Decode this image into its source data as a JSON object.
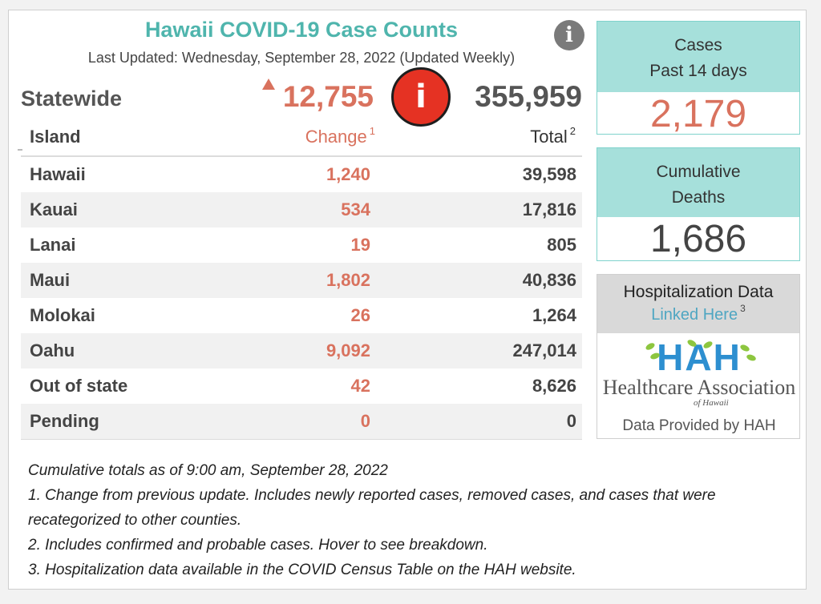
{
  "header": {
    "title": "Hawaii COVID-19 Case Counts",
    "subtitle": "Last Updated: Wednesday, September 28, 2022 (Updated Weekly)",
    "info_icon": "i"
  },
  "statewide": {
    "label": "Statewide",
    "change": "12,755",
    "change_direction": "up-arrow-icon",
    "total": "355,959",
    "alert_icon": "i"
  },
  "table": {
    "columns": {
      "island": "Island",
      "change": "Change",
      "change_note": "1",
      "total": "Total",
      "total_note": "2"
    },
    "rows": [
      {
        "island": "Hawaii",
        "change": "1,240",
        "total": "39,598"
      },
      {
        "island": "Kauai",
        "change": "534",
        "total": "17,816"
      },
      {
        "island": "Lanai",
        "change": "19",
        "total": "805"
      },
      {
        "island": "Maui",
        "change": "1,802",
        "total": "40,836"
      },
      {
        "island": "Molokai",
        "change": "26",
        "total": "1,264"
      },
      {
        "island": "Oahu",
        "change": "9,092",
        "total": "247,014"
      },
      {
        "island": "Out of state",
        "change": "42",
        "total": "8,626"
      },
      {
        "island": "Pending",
        "change": "0",
        "total": "0"
      }
    ]
  },
  "cases_card": {
    "line1": "Cases",
    "line2": "Past 14 days",
    "value": "2,179"
  },
  "deaths_card": {
    "line1": "Cumulative",
    "line2": "Deaths",
    "value": "1,686"
  },
  "hospitalization": {
    "title": "Hospitalization Data",
    "link": "Linked Here",
    "link_note": "3",
    "logo_letters": "HAH",
    "logo_name": "Healthcare Association",
    "logo_sub": "of Hawaii",
    "footer": "Data Provided by HAH"
  },
  "notes": [
    "Cumulative totals as of 9:00 am, September 28, 2022",
    "1. Change from previous update. Includes newly reported cases, removed cases, and cases that were recategorized to other counties.",
    "2. Includes confirmed and probable cases. Hover to see breakdown.",
    "3. Hospitalization data available in the COVID Census Table on the HAH website."
  ],
  "colors": {
    "title": "#4fb5ad",
    "change": "#d9725e",
    "card_header": "#a6e0db",
    "link": "#4fa6c2",
    "alert": "#e53223"
  }
}
